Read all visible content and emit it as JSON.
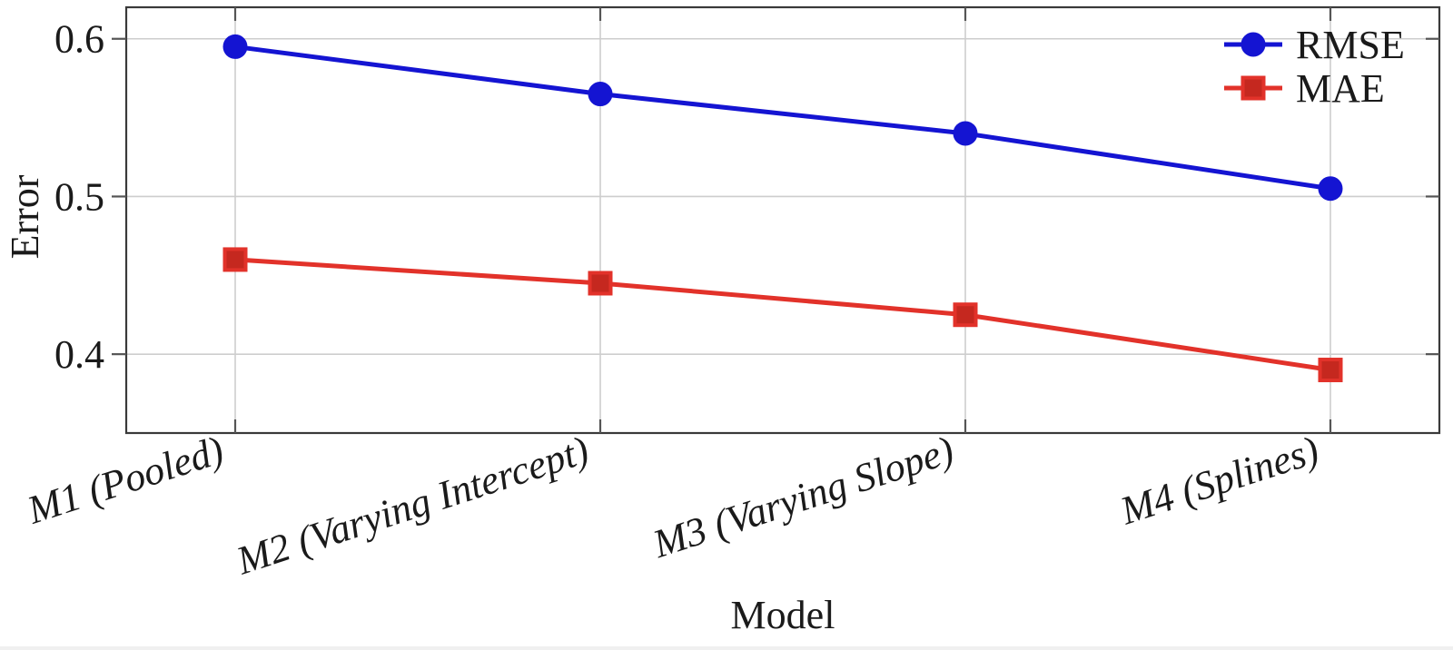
{
  "chart_data": {
    "type": "line",
    "title": "",
    "xlabel": "Model",
    "ylabel": "Error",
    "categories": [
      "M1 (Pooled)",
      "M2 (Varying Intercept)",
      "M3 (Varying Slope)",
      "M4 (Splines)"
    ],
    "series": [
      {
        "name": "RMSE",
        "values": [
          0.595,
          0.565,
          0.54,
          0.505
        ],
        "color": "#1414d2",
        "marker": "circle",
        "marker_fill": "#1414d2"
      },
      {
        "name": "MAE",
        "values": [
          0.46,
          0.445,
          0.425,
          0.39
        ],
        "color": "#e2322a",
        "marker": "square",
        "marker_fill": "#c5281f"
      }
    ],
    "yticks": [
      "0.4",
      "0.5",
      "0.6"
    ],
    "ytick_values": [
      0.4,
      0.5,
      0.6
    ],
    "ylim": [
      0.35,
      0.62
    ],
    "grid": true,
    "legend_position": "top-right-inside",
    "grid_color": "#cdcdcd",
    "frame_color": "#3a3a3a",
    "tick_color": "#555555",
    "text_color": "#1a1a1a"
  }
}
